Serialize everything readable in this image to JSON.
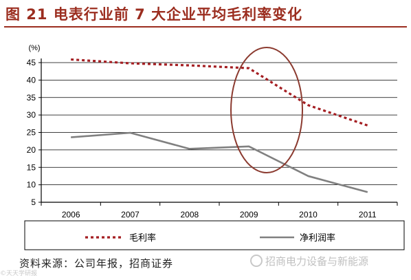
{
  "header": {
    "title": "图 21 电表行业前 7 大企业平均毛利率变化"
  },
  "footer": {
    "source": "资料来源：公司年报，招商证券",
    "watermark_right": "招商电力设备与新能源",
    "watermark_left": "©天天学研报"
  },
  "colors": {
    "title": "#9b2d1f",
    "gross_margin": "#a41e22",
    "net_margin": "#808080",
    "highlight_ellipse": "#8b3a2f"
  },
  "chart_data": {
    "type": "line",
    "title": "",
    "xlabel": "",
    "ylabel": "(%)",
    "categories": [
      "2006",
      "2007",
      "2008",
      "2009",
      "2010",
      "2011"
    ],
    "ylim": [
      5,
      45
    ],
    "yticks": [
      "5",
      "10",
      "15",
      "20",
      "25",
      "30",
      "35",
      "40",
      "45"
    ],
    "grid": true,
    "legend_position": "bottom",
    "series": [
      {
        "name": "毛利率",
        "style": "dotted",
        "values": [
          45.9,
          44.8,
          44.2,
          43.4,
          32.8,
          27.0
        ]
      },
      {
        "name": "净利润率",
        "style": "solid",
        "values": [
          23.6,
          24.9,
          20.3,
          21.0,
          12.5,
          7.9
        ]
      }
    ]
  }
}
